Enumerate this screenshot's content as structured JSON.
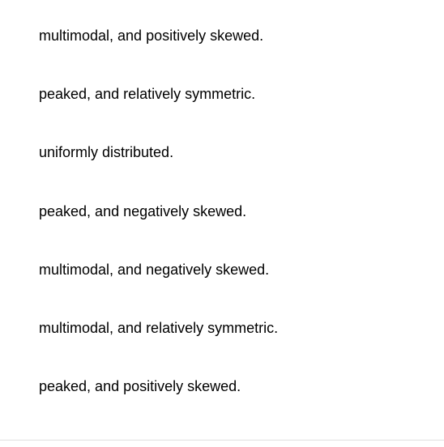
{
  "options": [
    "multimodal, and positively skewed.",
    "peaked, and relatively symmetric.",
    "uniformly distributed.",
    "peaked, and negatively skewed.",
    "multimodal, and negatively skewed.",
    "multimodal, and relatively symmetric.",
    "peaked, and positively skewed."
  ],
  "text_color": "#000000",
  "background_color": "#ffffff",
  "font_size": 18,
  "divider_color": "#e0e0e0"
}
